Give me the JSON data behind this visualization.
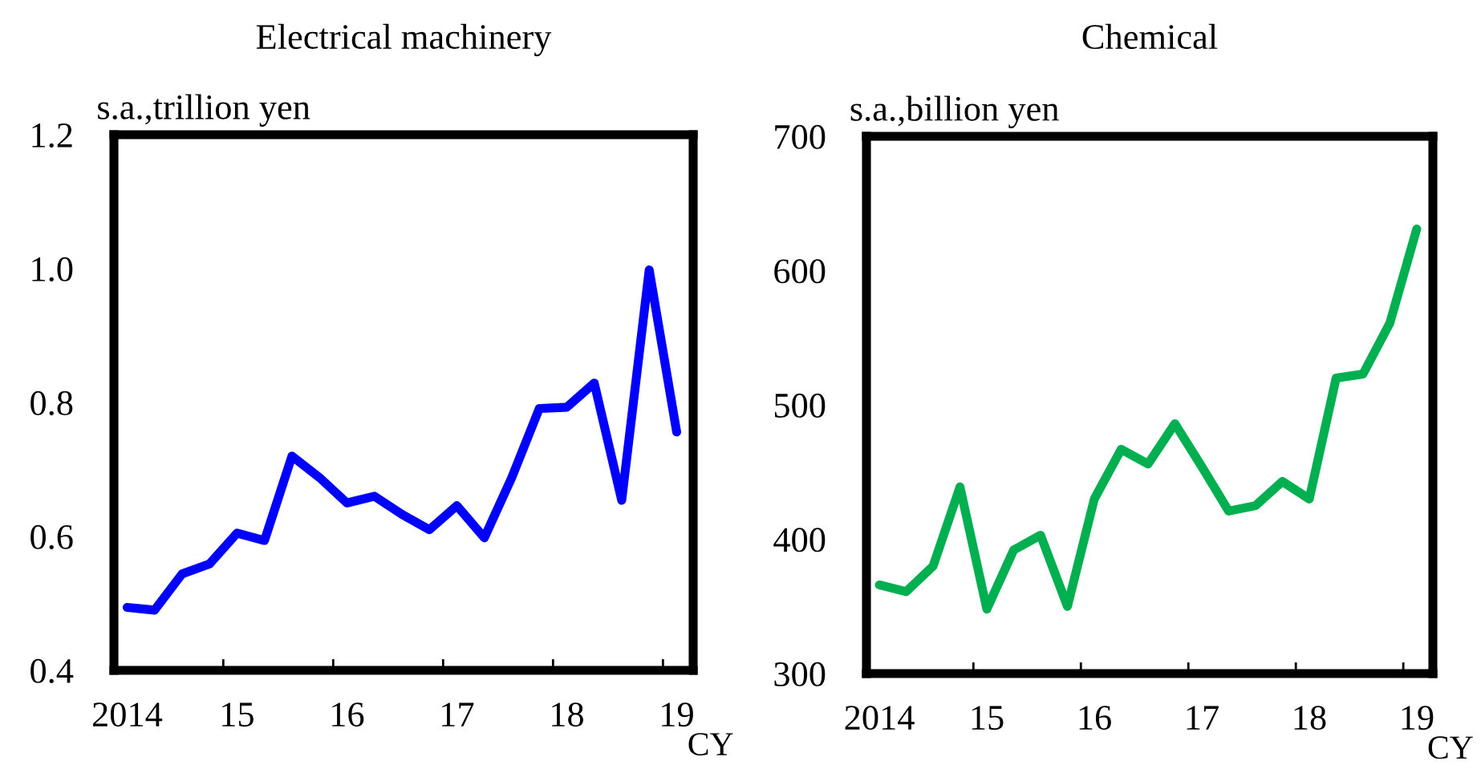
{
  "chart_data": [
    {
      "type": "line",
      "title": "Electrical machinery",
      "ylabel": "s.a.,trillion yen",
      "categories": [
        "2014",
        null,
        null,
        null,
        "15",
        null,
        null,
        null,
        "16",
        null,
        null,
        null,
        "17",
        null,
        null,
        null,
        "18",
        null,
        null,
        null,
        "19"
      ],
      "series": [
        {
          "color": "#0000ff",
          "values": [
            0.494,
            0.49,
            0.544,
            0.559,
            0.605,
            0.594,
            0.72,
            0.688,
            0.65,
            0.66,
            0.633,
            0.61,
            0.646,
            0.598,
            0.688,
            0.791,
            0.793,
            0.829,
            0.654,
            0.998,
            0.756
          ]
        }
      ],
      "ylim": [
        0.4,
        1.2
      ],
      "yticks": [
        {
          "value": 0.4,
          "label": "0.4"
        },
        {
          "value": 0.6,
          "label": "0.6"
        },
        {
          "value": 0.8,
          "label": "0.8"
        },
        {
          "value": 1.0,
          "label": "1.0"
        },
        {
          "value": 1.2,
          "label": "1.2"
        }
      ],
      "annotations": [
        "CY"
      ],
      "grid": false,
      "legend": false,
      "marker": "none",
      "line_style": "solid"
    },
    {
      "type": "line",
      "title": "Chemical",
      "ylabel": "s.a.,billion yen",
      "categories": [
        "2014",
        null,
        null,
        null,
        "15",
        null,
        null,
        null,
        "16",
        null,
        null,
        null,
        "17",
        null,
        null,
        null,
        "18",
        null,
        null,
        null,
        "19"
      ],
      "series": [
        {
          "color": "#00b050",
          "values": [
            366,
            361,
            380,
            439,
            348,
            392,
            403,
            350,
            430,
            467,
            456,
            486,
            454,
            421,
            425,
            443,
            430,
            520,
            523,
            561,
            631
          ]
        }
      ],
      "ylim": [
        300,
        700
      ],
      "yticks": [
        300,
        400,
        500,
        600,
        700
      ],
      "annotations": [
        "CY"
      ],
      "grid": false,
      "legend": false,
      "marker": "none",
      "line_style": "solid"
    }
  ]
}
